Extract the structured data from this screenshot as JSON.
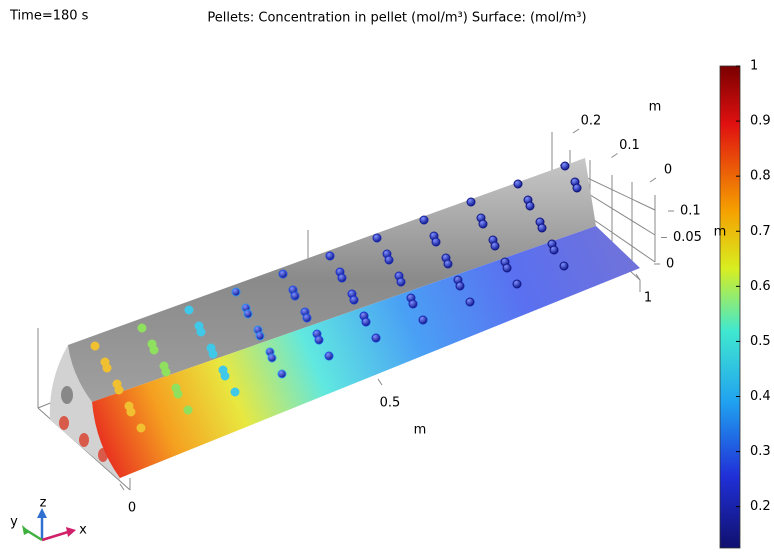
{
  "chart_data": {
    "type": "surface3d",
    "time_label": "Time=180 s",
    "title": "Pellets: Concentration in pellet (mol/m³)  Surface:  (mol/m³)",
    "xlim": [
      0,
      1
    ],
    "xticks": [
      0,
      0.5,
      1
    ],
    "x_label": "m",
    "ylim": [
      0,
      0.2
    ],
    "yticks": [
      0,
      0.1,
      0.2
    ],
    "y_label": "m",
    "zlim": [
      0,
      0.1
    ],
    "zticks": [
      0,
      0.05,
      0.1
    ],
    "z_label": "m",
    "colorbar": {
      "clim": [
        0.125,
        1
      ],
      "ticks": [
        0.2,
        0.3,
        0.4,
        0.5,
        0.6,
        0.7,
        0.8,
        0.9,
        1
      ]
    },
    "triad": {
      "x": "x",
      "y": "y",
      "z": "z"
    }
  }
}
